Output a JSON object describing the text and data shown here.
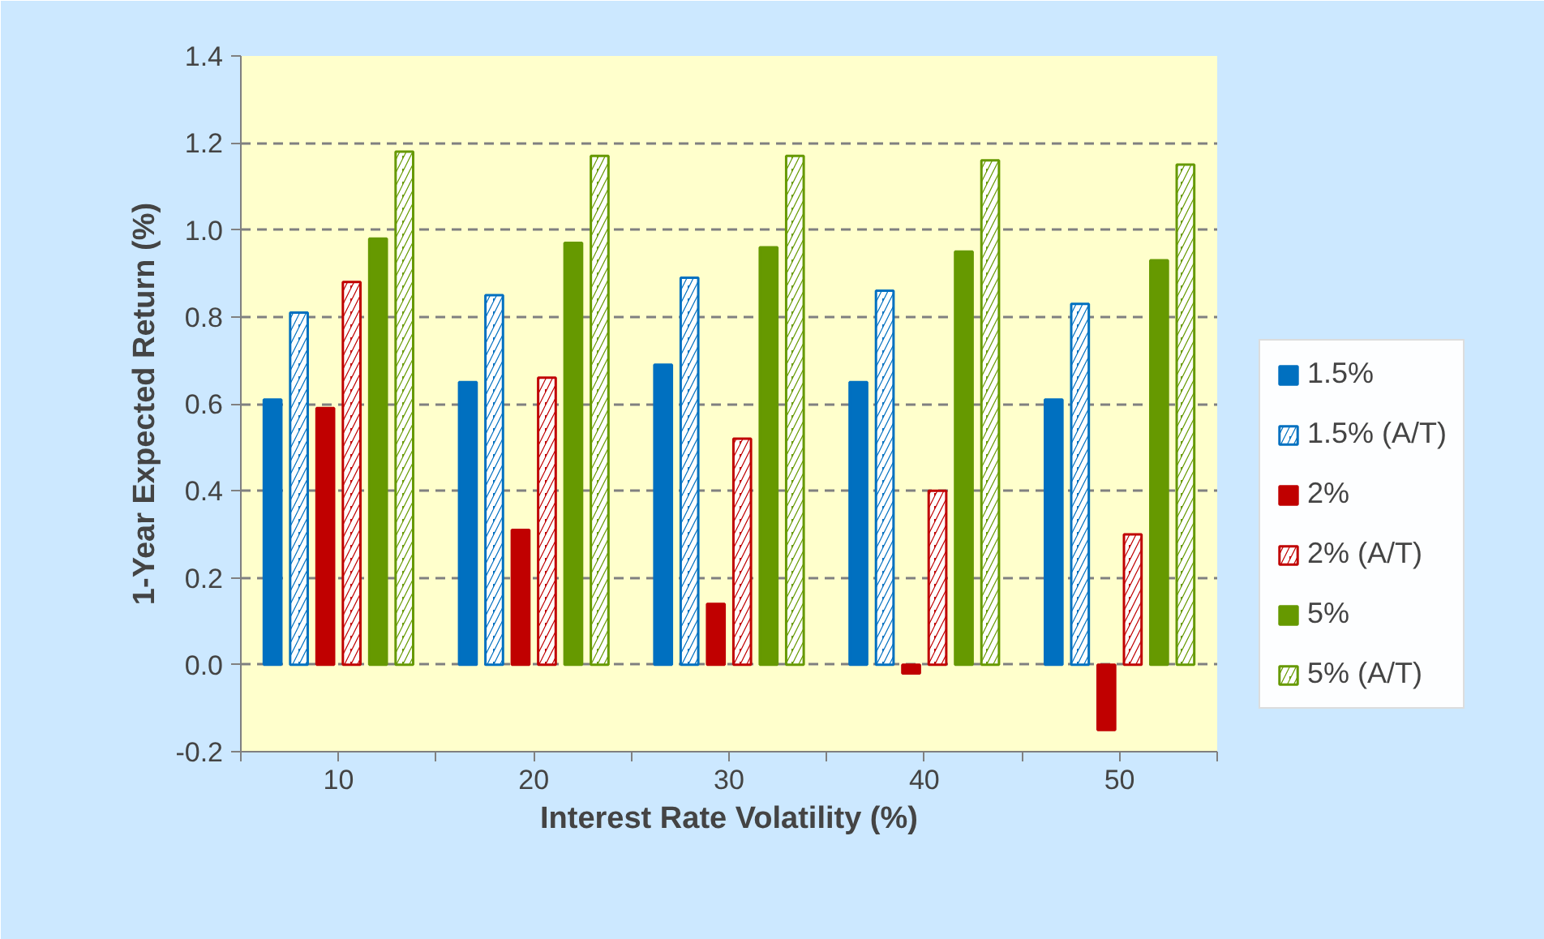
{
  "chart_data": {
    "type": "bar",
    "xlabel": "Interest Rate Volatility (%)",
    "ylabel": "1-Year Expected Return (%)",
    "categories": [
      "10",
      "20",
      "30",
      "40",
      "50"
    ],
    "series": [
      {
        "name": "1.5%",
        "color": "#0070c0",
        "values": [
          0.61,
          0.65,
          0.69,
          0.65,
          0.61
        ]
      },
      {
        "name": "1.5% (A/T)",
        "color": "#0070c0",
        "values": [
          0.81,
          0.85,
          0.89,
          0.86,
          0.83
        ]
      },
      {
        "name": "2%",
        "color": "#c00000",
        "values": [
          0.59,
          0.31,
          0.14,
          -0.02,
          -0.15
        ]
      },
      {
        "name": "2% (A/T)",
        "color": "#c00000",
        "values": [
          0.88,
          0.66,
          0.52,
          0.4,
          0.3
        ]
      },
      {
        "name": "5%",
        "color": "#669900",
        "values": [
          0.98,
          0.97,
          0.96,
          0.95,
          0.93
        ]
      },
      {
        "name": "5% (A/T)",
        "color": "#669900",
        "values": [
          1.18,
          1.17,
          1.17,
          1.16,
          1.15
        ]
      }
    ],
    "ylim": [
      -0.2,
      1.4
    ],
    "yticks": [
      {
        "value": -0.2,
        "label": "-0.2"
      },
      {
        "value": 0,
        "label": "0.0"
      },
      {
        "value": 0.2,
        "label": "0.2"
      },
      {
        "value": 0.4,
        "label": "0.4"
      },
      {
        "value": 0.6,
        "label": "0.6"
      },
      {
        "value": 0.8,
        "label": "0.8"
      },
      {
        "value": 1.0,
        "label": "1.0"
      },
      {
        "value": 1.2,
        "label": "1.2"
      },
      {
        "value": 1.4,
        "label": "1.4"
      }
    ],
    "grid": "y",
    "legend": "right"
  }
}
